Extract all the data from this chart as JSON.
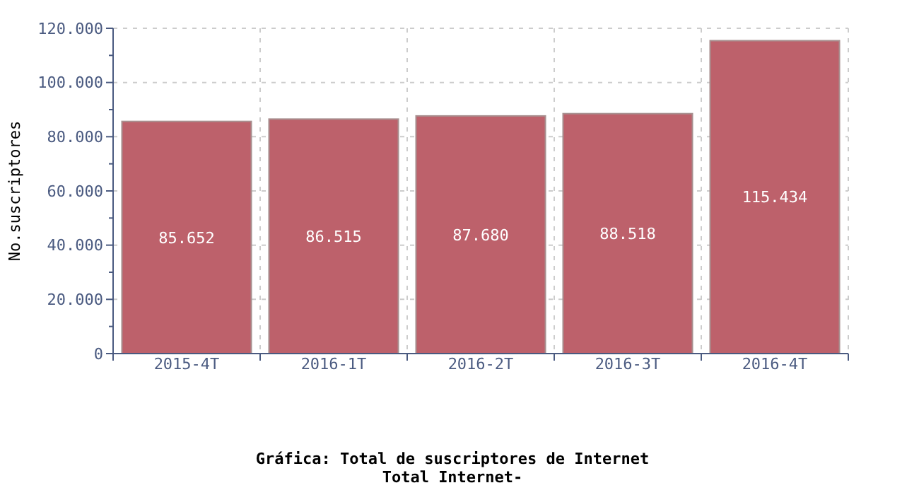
{
  "chart_data": {
    "type": "bar",
    "title": "Gráfica: Total de suscriptores de Internet",
    "subtitle": "Total Internet-",
    "ylabel": "No.suscriptores",
    "categories": [
      "2015-4T",
      "2016-1T",
      "2016-2T",
      "2016-3T",
      "2016-4T"
    ],
    "values": [
      85652,
      86515,
      87680,
      88518,
      115434
    ],
    "color": "#bd616b",
    "value_labels": [
      "85.652",
      "86.515",
      "87.680",
      "88.518",
      "115.434"
    ],
    "ylim": [
      0,
      120000
    ],
    "yticks": [
      0,
      {
        "value": 20000,
        "label": "20.000"
      },
      {
        "value": 40000,
        "label": "40.000"
      },
      {
        "value": 60000,
        "label": "60.000"
      },
      {
        "value": 80000,
        "label": "80.000"
      },
      {
        "value": 100000,
        "label": "100.000"
      },
      {
        "value": 120000,
        "label": "120.000"
      }
    ],
    "grid": true
  }
}
